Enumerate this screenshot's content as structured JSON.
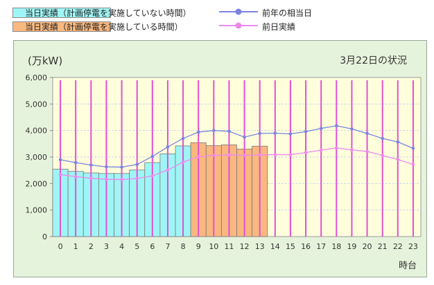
{
  "legend": {
    "actual_no_outage": "当日実績（計画停電を実施していない時間）",
    "actual_outage": "当日実績（計画停電を実施している時間）",
    "prev_year": "前年の相当日",
    "prev_day": "前日実績"
  },
  "colors": {
    "bar_no_outage": "#9ff5f5",
    "bar_outage": "#f9b87f",
    "prev_year_line": "#7b83e0",
    "prev_day_line": "#ee88ee",
    "hour_lines": "#e050d6",
    "plot_bg": "#ffffdc",
    "frame_bg": "#e6f3dc"
  },
  "chart_data": {
    "type": "bar",
    "unit_label": "(万kW)",
    "date_label": "3月22日の状況",
    "xlabel": "時台",
    "ylim": [
      0,
      6000
    ],
    "yticks": [
      "0",
      "1,000",
      "2,000",
      "3,000",
      "4,000",
      "5,000",
      "6,000"
    ],
    "ytick_values": [
      0,
      1000,
      2000,
      3000,
      4000,
      5000,
      6000
    ],
    "categories": [
      "0",
      "1",
      "2",
      "3",
      "4",
      "5",
      "6",
      "7",
      "8",
      "9",
      "10",
      "11",
      "12",
      "13",
      "14",
      "15",
      "16",
      "17",
      "18",
      "19",
      "20",
      "21",
      "22",
      "23"
    ],
    "bars": [
      {
        "hour": 0,
        "value": 2540,
        "outage": false
      },
      {
        "hour": 1,
        "value": 2460,
        "outage": false
      },
      {
        "hour": 2,
        "value": 2400,
        "outage": false
      },
      {
        "hour": 3,
        "value": 2380,
        "outage": false
      },
      {
        "hour": 4,
        "value": 2380,
        "outage": false
      },
      {
        "hour": 5,
        "value": 2510,
        "outage": false
      },
      {
        "hour": 6,
        "value": 2790,
        "outage": false
      },
      {
        "hour": 7,
        "value": 3120,
        "outage": false
      },
      {
        "hour": 8,
        "value": 3420,
        "outage": false
      },
      {
        "hour": 9,
        "value": 3540,
        "outage": true
      },
      {
        "hour": 10,
        "value": 3430,
        "outage": true
      },
      {
        "hour": 11,
        "value": 3460,
        "outage": true
      },
      {
        "hour": 12,
        "value": 3300,
        "outage": true
      },
      {
        "hour": 13,
        "value": 3410,
        "outage": true
      }
    ],
    "series": [
      {
        "name": "前年の相当日",
        "values": [
          2900,
          2790,
          2700,
          2630,
          2620,
          2720,
          3020,
          3380,
          3700,
          3940,
          4000,
          3970,
          3750,
          3890,
          3900,
          3870,
          3960,
          4080,
          4180,
          4060,
          3890,
          3700,
          3570,
          3330
        ]
      },
      {
        "name": "前日実績",
        "values": [
          2340,
          2260,
          2200,
          2160,
          2150,
          2190,
          2290,
          2510,
          2810,
          3010,
          3060,
          3080,
          3060,
          3080,
          3090,
          3090,
          3170,
          3260,
          3340,
          3270,
          3210,
          3060,
          2910,
          2720
        ]
      }
    ]
  }
}
